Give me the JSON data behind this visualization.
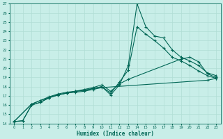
{
  "xlabel": "Humidex (Indice chaleur)",
  "xlim": [
    -0.5,
    23.5
  ],
  "ylim": [
    14,
    27
  ],
  "yticks": [
    14,
    15,
    16,
    17,
    18,
    19,
    20,
    21,
    22,
    23,
    24,
    25,
    26,
    27
  ],
  "xticks": [
    0,
    1,
    2,
    3,
    4,
    5,
    6,
    7,
    8,
    9,
    10,
    11,
    12,
    13,
    14,
    15,
    16,
    17,
    18,
    19,
    20,
    21,
    22,
    23
  ],
  "background_color": "#c8eee8",
  "grid_color": "#b0ddd5",
  "line_color": "#006655",
  "line1_x": [
    0,
    1,
    2,
    3,
    4,
    5,
    6,
    7,
    8,
    9,
    10,
    11,
    12,
    13,
    14,
    15,
    16,
    17,
    18,
    19,
    20,
    21,
    22,
    23
  ],
  "line1_y": [
    14.2,
    14.3,
    16.0,
    16.3,
    16.8,
    17.1,
    17.3,
    17.5,
    17.6,
    17.8,
    18.0,
    17.1,
    18.2,
    20.3,
    27.0,
    24.5,
    23.5,
    23.3,
    22.0,
    21.2,
    20.8,
    20.3,
    19.5,
    19.2
  ],
  "line2_x": [
    0,
    1,
    2,
    3,
    4,
    5,
    6,
    7,
    8,
    9,
    10,
    11,
    12,
    13,
    14,
    15,
    16,
    17,
    18,
    19,
    20,
    21,
    22,
    23
  ],
  "line2_y": [
    14.2,
    14.3,
    16.0,
    16.3,
    16.8,
    17.1,
    17.3,
    17.5,
    17.6,
    17.8,
    18.0,
    17.3,
    18.5,
    19.8,
    24.5,
    23.7,
    23.0,
    22.2,
    21.2,
    20.8,
    20.3,
    19.7,
    19.2,
    18.9
  ],
  "line3_x": [
    0,
    2,
    3,
    4,
    5,
    6,
    7,
    8,
    9,
    10,
    11,
    12,
    13,
    19,
    20,
    21,
    22,
    23
  ],
  "line3_y": [
    14.2,
    16.1,
    16.5,
    16.9,
    17.2,
    17.4,
    17.5,
    17.7,
    17.9,
    18.2,
    17.5,
    18.3,
    18.8,
    21.0,
    21.2,
    20.7,
    19.4,
    19.0
  ],
  "line4_x": [
    0,
    2,
    3,
    4,
    5,
    6,
    7,
    8,
    9,
    10,
    22,
    23
  ],
  "line4_y": [
    14.2,
    16.1,
    16.5,
    16.8,
    17.1,
    17.3,
    17.4,
    17.5,
    17.7,
    17.9,
    18.7,
    18.9
  ]
}
